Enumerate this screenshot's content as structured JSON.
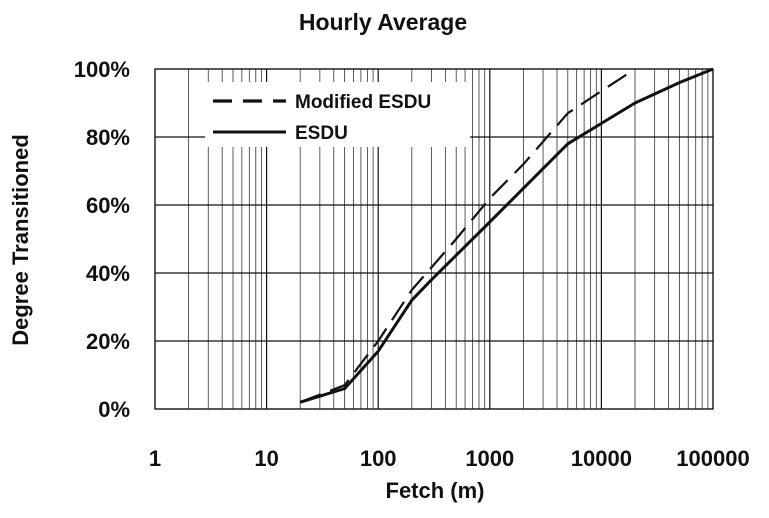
{
  "chart_data": {
    "type": "line",
    "title": "Hourly Average",
    "xlabel": "Fetch (m)",
    "ylabel": "Degree Transitioned",
    "x_scale": "log",
    "xlim": [
      1,
      100000
    ],
    "ylim": [
      0,
      100
    ],
    "x_ticks": [
      "1",
      "10",
      "100",
      "1000",
      "10000",
      "100000"
    ],
    "y_ticks": [
      "0%",
      "20%",
      "40%",
      "60%",
      "80%",
      "100%"
    ],
    "grid": true,
    "legend_position": "top-left",
    "series": [
      {
        "name": "Modified ESDU",
        "style": "dashed",
        "points": [
          [
            20,
            2
          ],
          [
            50,
            7
          ],
          [
            100,
            20
          ],
          [
            200,
            35
          ],
          [
            500,
            50
          ],
          [
            1000,
            62
          ],
          [
            2000,
            72
          ],
          [
            5000,
            87
          ],
          [
            20000,
            100
          ]
        ]
      },
      {
        "name": "ESDU",
        "style": "solid",
        "points": [
          [
            20,
            2
          ],
          [
            50,
            6
          ],
          [
            100,
            17
          ],
          [
            200,
            32
          ],
          [
            300,
            38
          ],
          [
            1000,
            55
          ],
          [
            5000,
            78
          ],
          [
            10000,
            84
          ],
          [
            20000,
            90
          ],
          [
            50000,
            96
          ],
          [
            100000,
            100
          ]
        ]
      }
    ]
  }
}
